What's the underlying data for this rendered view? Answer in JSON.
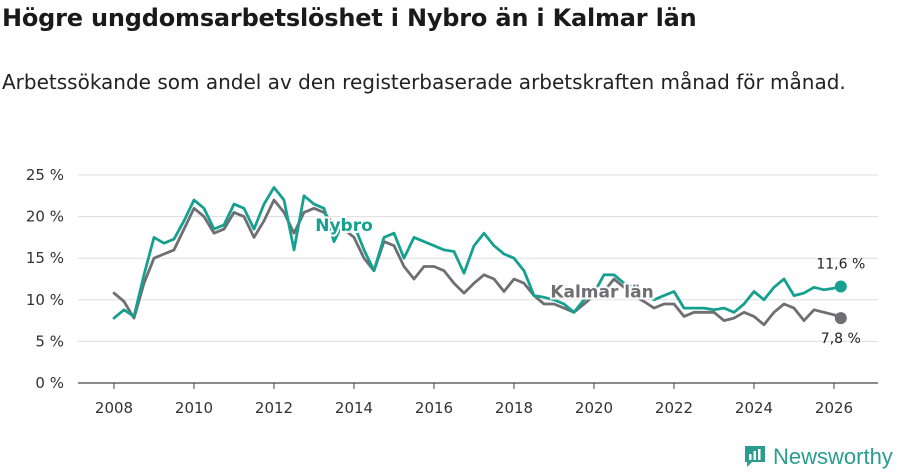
{
  "title": "Högre ungdomsarbetslöshet i Nybro än i Kalmar län",
  "subtitle": "Arbetssökande som andel av den registerbaserade arbetskraften månad för månad.",
  "brand": {
    "name": "Newsworthy",
    "icon": "newsworthy-logo-icon",
    "color": "#2a9d8f"
  },
  "colors": {
    "nybro": "#16a08f",
    "kalmar": "#6e6e73",
    "grid": "#dddddd",
    "axis": "#444444"
  },
  "chart_data": {
    "type": "line",
    "x_ticks": [
      "2008",
      "2010",
      "2012",
      "2014",
      "2016",
      "2018",
      "2020",
      "2022",
      "2024",
      "2026"
    ],
    "y_ticks": [
      "0 %",
      "5 %",
      "10 %",
      "15 %",
      "20 %",
      "25 %"
    ],
    "xlim": [
      2007.1,
      2027.1
    ],
    "ylim": [
      0,
      25
    ],
    "grid": true,
    "series": [
      {
        "name": "Nybro",
        "color": "#16a08f",
        "end_label": "11,6 %",
        "points": [
          [
            2008.0,
            7.8
          ],
          [
            2008.25,
            8.8
          ],
          [
            2008.5,
            8.0
          ],
          [
            2008.75,
            13.0
          ],
          [
            2009.0,
            17.5
          ],
          [
            2009.25,
            16.8
          ],
          [
            2009.5,
            17.3
          ],
          [
            2009.75,
            19.5
          ],
          [
            2010.0,
            22.0
          ],
          [
            2010.25,
            21.0
          ],
          [
            2010.5,
            18.5
          ],
          [
            2010.75,
            19.0
          ],
          [
            2011.0,
            21.5
          ],
          [
            2011.25,
            21.0
          ],
          [
            2011.5,
            18.5
          ],
          [
            2011.75,
            21.5
          ],
          [
            2012.0,
            23.5
          ],
          [
            2012.25,
            22.0
          ],
          [
            2012.5,
            16.0
          ],
          [
            2012.75,
            22.5
          ],
          [
            2013.0,
            21.5
          ],
          [
            2013.25,
            21.0
          ],
          [
            2013.5,
            17.0
          ],
          [
            2013.75,
            19.5
          ],
          [
            2014.0,
            19.0
          ],
          [
            2014.25,
            16.0
          ],
          [
            2014.5,
            13.5
          ],
          [
            2014.75,
            17.5
          ],
          [
            2015.0,
            18.0
          ],
          [
            2015.25,
            15.0
          ],
          [
            2015.5,
            17.5
          ],
          [
            2015.75,
            17.0
          ],
          [
            2016.0,
            16.5
          ],
          [
            2016.25,
            16.0
          ],
          [
            2016.5,
            15.8
          ],
          [
            2016.75,
            13.2
          ],
          [
            2017.0,
            16.5
          ],
          [
            2017.25,
            18.0
          ],
          [
            2017.5,
            16.5
          ],
          [
            2017.75,
            15.5
          ],
          [
            2018.0,
            15.0
          ],
          [
            2018.25,
            13.5
          ],
          [
            2018.5,
            10.5
          ],
          [
            2018.75,
            10.3
          ],
          [
            2019.0,
            10.0
          ],
          [
            2019.25,
            9.5
          ],
          [
            2019.5,
            8.5
          ],
          [
            2019.75,
            10.0
          ],
          [
            2020.0,
            10.8
          ],
          [
            2020.25,
            13.0
          ],
          [
            2020.5,
            13.0
          ],
          [
            2020.75,
            12.0
          ],
          [
            2021.0,
            11.5
          ],
          [
            2021.25,
            11.0
          ],
          [
            2021.5,
            10.0
          ],
          [
            2021.75,
            10.5
          ],
          [
            2022.0,
            11.0
          ],
          [
            2022.25,
            9.0
          ],
          [
            2022.5,
            9.0
          ],
          [
            2022.75,
            9.0
          ],
          [
            2023.0,
            8.8
          ],
          [
            2023.25,
            9.0
          ],
          [
            2023.5,
            8.5
          ],
          [
            2023.75,
            9.5
          ],
          [
            2024.0,
            11.0
          ],
          [
            2024.25,
            10.0
          ],
          [
            2024.5,
            11.5
          ],
          [
            2024.75,
            12.5
          ],
          [
            2025.0,
            10.5
          ],
          [
            2025.25,
            10.8
          ],
          [
            2025.5,
            11.5
          ],
          [
            2025.75,
            11.2
          ],
          [
            2026.0,
            11.4
          ],
          [
            2026.17,
            11.6
          ]
        ]
      },
      {
        "name": "Kalmar län",
        "color": "#6e6e73",
        "end_label": "7,8 %",
        "points": [
          [
            2008.0,
            10.8
          ],
          [
            2008.25,
            9.8
          ],
          [
            2008.5,
            7.8
          ],
          [
            2008.75,
            12.0
          ],
          [
            2009.0,
            15.0
          ],
          [
            2009.25,
            15.5
          ],
          [
            2009.5,
            16.0
          ],
          [
            2009.75,
            18.5
          ],
          [
            2010.0,
            21.0
          ],
          [
            2010.25,
            20.0
          ],
          [
            2010.5,
            18.0
          ],
          [
            2010.75,
            18.5
          ],
          [
            2011.0,
            20.5
          ],
          [
            2011.25,
            20.0
          ],
          [
            2011.5,
            17.5
          ],
          [
            2011.75,
            19.5
          ],
          [
            2012.0,
            22.0
          ],
          [
            2012.25,
            20.5
          ],
          [
            2012.5,
            18.0
          ],
          [
            2012.75,
            20.5
          ],
          [
            2013.0,
            21.0
          ],
          [
            2013.25,
            20.5
          ],
          [
            2013.5,
            19.0
          ],
          [
            2013.75,
            18.5
          ],
          [
            2014.0,
            17.5
          ],
          [
            2014.25,
            15.0
          ],
          [
            2014.5,
            13.5
          ],
          [
            2014.75,
            17.0
          ],
          [
            2015.0,
            16.5
          ],
          [
            2015.25,
            14.0
          ],
          [
            2015.5,
            12.5
          ],
          [
            2015.75,
            14.0
          ],
          [
            2016.0,
            14.0
          ],
          [
            2016.25,
            13.5
          ],
          [
            2016.5,
            12.0
          ],
          [
            2016.75,
            10.8
          ],
          [
            2017.0,
            12.0
          ],
          [
            2017.25,
            13.0
          ],
          [
            2017.5,
            12.5
          ],
          [
            2017.75,
            11.0
          ],
          [
            2018.0,
            12.5
          ],
          [
            2018.25,
            12.0
          ],
          [
            2018.5,
            10.5
          ],
          [
            2018.75,
            9.5
          ],
          [
            2019.0,
            9.5
          ],
          [
            2019.25,
            9.0
          ],
          [
            2019.5,
            8.5
          ],
          [
            2019.75,
            9.5
          ],
          [
            2020.0,
            10.5
          ],
          [
            2020.25,
            11.0
          ],
          [
            2020.5,
            12.5
          ],
          [
            2020.75,
            11.5
          ],
          [
            2021.0,
            10.5
          ],
          [
            2021.25,
            9.8
          ],
          [
            2021.5,
            9.0
          ],
          [
            2021.75,
            9.5
          ],
          [
            2022.0,
            9.5
          ],
          [
            2022.25,
            8.0
          ],
          [
            2022.5,
            8.5
          ],
          [
            2022.75,
            8.5
          ],
          [
            2023.0,
            8.5
          ],
          [
            2023.25,
            7.5
          ],
          [
            2023.5,
            7.8
          ],
          [
            2023.75,
            8.5
          ],
          [
            2024.0,
            8.0
          ],
          [
            2024.25,
            7.0
          ],
          [
            2024.5,
            8.5
          ],
          [
            2024.75,
            9.5
          ],
          [
            2025.0,
            9.0
          ],
          [
            2025.25,
            7.5
          ],
          [
            2025.5,
            8.8
          ],
          [
            2025.75,
            8.5
          ],
          [
            2026.0,
            8.2
          ],
          [
            2026.17,
            7.8
          ]
        ]
      }
    ]
  }
}
